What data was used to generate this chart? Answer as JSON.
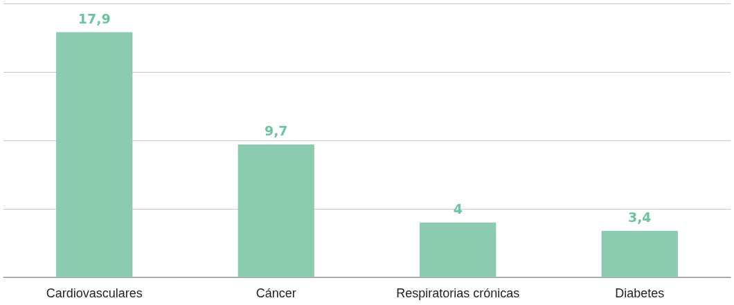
{
  "chart_data": {
    "type": "bar",
    "categories": [
      "Cardiovasculares",
      "Cáncer",
      "Respiratorias crónicas",
      "Diabetes"
    ],
    "values": [
      17.9,
      9.7,
      4,
      3.4
    ],
    "color": "#8ccbb0",
    "value_labels": [
      "17,9",
      "9,7",
      "4",
      "3,4"
    ],
    "ylim": [
      0,
      20
    ],
    "yticks": [
      {
        "value": 0,
        "label": null
      },
      {
        "value": 5,
        "label": null
      },
      {
        "value": 10,
        "label": null
      },
      {
        "value": 15,
        "label": null
      },
      {
        "value": 20,
        "label": null
      }
    ],
    "grid": "y",
    "tick_labels": "x"
  }
}
